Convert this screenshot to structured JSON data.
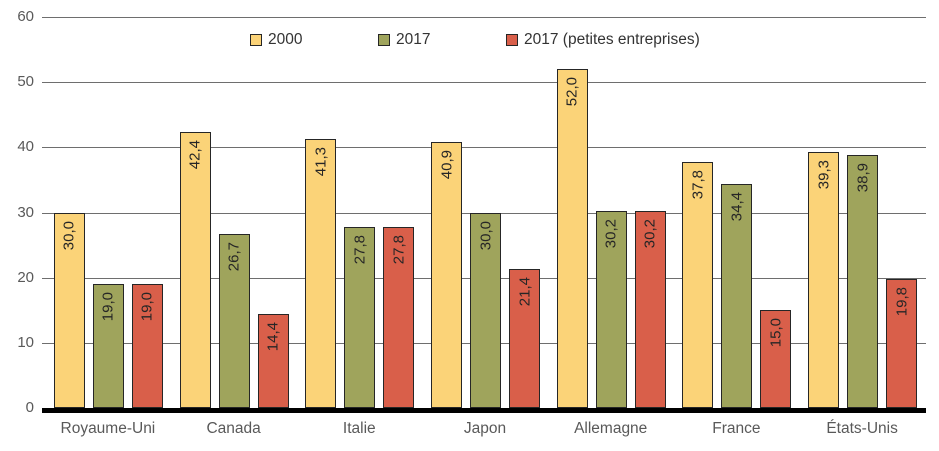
{
  "chart_data": {
    "type": "bar",
    "title": "",
    "xlabel": "",
    "ylabel": "",
    "ylim": [
      0,
      60
    ],
    "yticks": [
      0,
      10,
      20,
      30,
      40,
      50,
      60
    ],
    "grid": true,
    "legend_position": "top",
    "decimal_separator": ",",
    "categories": [
      "Royaume-Uni",
      "Canada",
      "Italie",
      "Japon",
      "Allemagne",
      "France",
      "États-Unis"
    ],
    "series": [
      {
        "name": "2000",
        "color": "#FBD378",
        "values": [
          30.0,
          42.4,
          41.3,
          40.9,
          52.0,
          37.8,
          39.3
        ],
        "labels": [
          "30,0",
          "42,4",
          "41,3",
          "40,9",
          "52,0",
          "37,8",
          "39,3"
        ]
      },
      {
        "name": "2017",
        "color": "#9FA45C",
        "values": [
          19.0,
          26.7,
          27.8,
          30.0,
          30.2,
          34.4,
          38.9
        ],
        "labels": [
          "19,0",
          "26,7",
          "27,8",
          "30,0",
          "30,2",
          "34,4",
          "38,9"
        ]
      },
      {
        "name": "2017 (petites entreprises)",
        "color": "#D95F4A",
        "values": [
          19.0,
          14.4,
          27.8,
          21.4,
          30.2,
          15.0,
          19.8
        ],
        "labels": [
          "19,0",
          "14,4",
          "27,8",
          "21,4",
          "30,2",
          "15,0",
          "19,8"
        ]
      }
    ]
  }
}
